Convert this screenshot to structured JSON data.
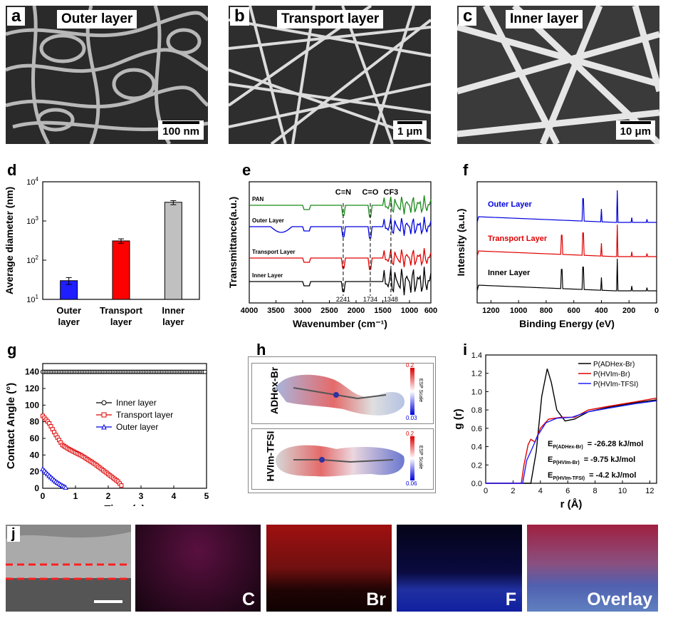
{
  "panels": {
    "a": {
      "letter": "a",
      "title": "Outer layer",
      "scale": "100 nm"
    },
    "b": {
      "letter": "b",
      "title": "Transport layer",
      "scale": "1 μm"
    },
    "c": {
      "letter": "c",
      "title": "Inner layer",
      "scale": "10 μm"
    },
    "d": {
      "letter": "d"
    },
    "e": {
      "letter": "e"
    },
    "f": {
      "letter": "f"
    },
    "g": {
      "letter": "g"
    },
    "h": {
      "letter": "h",
      "mol1": "ADHex-Br",
      "mol2": "HVIm-TFSI",
      "esp_label": "ESP Scale",
      "mol1_max": "0.2",
      "mol1_min": "0.03",
      "mol2_max": "0.2",
      "mol2_min": "0.06"
    },
    "i": {
      "letter": "i"
    },
    "j": {
      "letter": "j",
      "maps": [
        "C",
        "Br",
        "F",
        "Overlay"
      ]
    }
  },
  "chart_data": [
    {
      "id": "d",
      "type": "bar",
      "log_y": true,
      "ylabel": "Average diameter (nm)",
      "categories": [
        "Outer\nlayer",
        "Transport\nlayer",
        "Inner\nlayer"
      ],
      "values": [
        30,
        310,
        3000
      ],
      "errors": [
        [
          24,
          36
        ],
        [
          270,
          350
        ],
        [
          2600,
          3300
        ]
      ],
      "colors": [
        "#1e1eff",
        "#ff0000",
        "#c0c0c0"
      ],
      "ylim": [
        10,
        10000
      ],
      "ticks": [
        "10^1",
        "10^2",
        "10^3",
        "10^4"
      ]
    },
    {
      "id": "e",
      "type": "line",
      "xlabel": "Wavenumber (cm⁻¹)",
      "ylabel": "Transmittance(a.u.)",
      "xlim": [
        4000,
        600
      ],
      "xticks": [
        "4000",
        "3500",
        "3000",
        "2500",
        "2000",
        "1500",
        "1000",
        "600"
      ],
      "series": [
        {
          "name": "PAN",
          "color": "#1a8a1a"
        },
        {
          "name": "Outer Layer",
          "color": "#0000e0"
        },
        {
          "name": "Transport Layer",
          "color": "#e00000"
        },
        {
          "name": "Inner Layer",
          "color": "#000000"
        }
      ],
      "annotations": [
        {
          "label": "C≡N",
          "x": 2241,
          "value": "2241"
        },
        {
          "label": "C=O",
          "x": 1734,
          "value": "1734"
        },
        {
          "label": "CF3",
          "x": 1348,
          "value": "1348"
        }
      ]
    },
    {
      "id": "f",
      "type": "line",
      "xlabel": "Binding Energy (eV)",
      "ylabel": "Intensity (a.u.)",
      "xlim": [
        1300,
        0
      ],
      "xticks": [
        "1200",
        "1000",
        "800",
        "600",
        "400",
        "200",
        "0"
      ],
      "series": [
        {
          "name": "Outer Layer",
          "color": "#0000e0"
        },
        {
          "name": "Transport Layer",
          "color": "#e00000"
        },
        {
          "name": "Inner Layer",
          "color": "#000000"
        }
      ]
    },
    {
      "id": "g",
      "type": "line",
      "xlabel": "Time (s)",
      "ylabel": "Contact Angle (°)",
      "xlim": [
        0,
        5
      ],
      "ylim": [
        0,
        150
      ],
      "xticks": [
        "0",
        "1",
        "2",
        "3",
        "4",
        "5"
      ],
      "yticks": [
        "0",
        "20",
        "40",
        "60",
        "80",
        "100",
        "120",
        "140"
      ],
      "series": [
        {
          "name": "Inner layer",
          "color": "#000000",
          "marker": "circle",
          "points": [
            [
              0,
              140
            ],
            [
              5,
              140
            ]
          ]
        },
        {
          "name": "Transport  layer",
          "color": "#e00000",
          "marker": "square",
          "points": [
            [
              0,
              87
            ],
            [
              0.2,
              78
            ],
            [
              0.4,
              64
            ],
            [
              0.6,
              52
            ],
            [
              0.8,
              47
            ],
            [
              1.2,
              39
            ],
            [
              1.6,
              29
            ],
            [
              2.0,
              17
            ],
            [
              2.3,
              8
            ],
            [
              2.45,
              1
            ]
          ]
        },
        {
          "name": "Outer layer",
          "color": "#0000e0",
          "marker": "triangle",
          "points": [
            [
              0,
              23
            ],
            [
              0.2,
              15
            ],
            [
              0.4,
              8
            ],
            [
              0.6,
              3
            ],
            [
              0.75,
              0
            ]
          ]
        }
      ]
    },
    {
      "id": "i",
      "type": "line",
      "xlabel": "r (Å)",
      "ylabel": "g (r)",
      "xlim": [
        0,
        12.5
      ],
      "ylim": [
        0,
        1.4
      ],
      "xticks": [
        "0",
        "2",
        "4",
        "6",
        "8",
        "10",
        "12"
      ],
      "yticks": [
        "0.0",
        "0.2",
        "0.4",
        "0.6",
        "0.8",
        "1.0",
        "1.2",
        "1.4"
      ],
      "series": [
        {
          "name": "P(ADHex-Br)",
          "color": "#000000",
          "points": [
            [
              3.3,
              0
            ],
            [
              3.7,
              0.35
            ],
            [
              4.1,
              0.95
            ],
            [
              4.5,
              1.25
            ],
            [
              4.8,
              1.1
            ],
            [
              5.2,
              0.8
            ],
            [
              5.8,
              0.68
            ],
            [
              6.5,
              0.7
            ],
            [
              7.5,
              0.78
            ],
            [
              9,
              0.83
            ],
            [
              11,
              0.88
            ],
            [
              12.5,
              0.91
            ]
          ]
        },
        {
          "name": "P(HVIm-Br)",
          "color": "#e00000",
          "points": [
            [
              2.6,
              0
            ],
            [
              2.8,
              0.2
            ],
            [
              3.1,
              0.42
            ],
            [
              3.3,
              0.48
            ],
            [
              3.6,
              0.45
            ],
            [
              4.0,
              0.6
            ],
            [
              4.6,
              0.7
            ],
            [
              5.5,
              0.72
            ],
            [
              6.5,
              0.72
            ],
            [
              7.5,
              0.8
            ],
            [
              9,
              0.84
            ],
            [
              11,
              0.89
            ],
            [
              12.5,
              0.93
            ]
          ]
        },
        {
          "name": "P(HVIm-TFSI)",
          "color": "#1e1eff",
          "points": [
            [
              2.7,
              0
            ],
            [
              3.0,
              0.25
            ],
            [
              3.4,
              0.38
            ],
            [
              3.8,
              0.52
            ],
            [
              4.4,
              0.66
            ],
            [
              5.2,
              0.71
            ],
            [
              6.3,
              0.72
            ],
            [
              7.5,
              0.78
            ],
            [
              9,
              0.82
            ],
            [
              11,
              0.87
            ],
            [
              12.5,
              0.9
            ]
          ]
        }
      ],
      "energies": [
        {
          "sym": "E",
          "sub": "P(ADHex-Br)",
          "value": "= -26.28 kJ/mol"
        },
        {
          "sym": "E",
          "sub": "P(HVIm-Br)",
          "value": "= -9.75 kJ/mol"
        },
        {
          "sym": "E",
          "sub": "P(HVIm-TFSI)",
          "value": "= -4.2 kJ/mol"
        }
      ]
    }
  ]
}
